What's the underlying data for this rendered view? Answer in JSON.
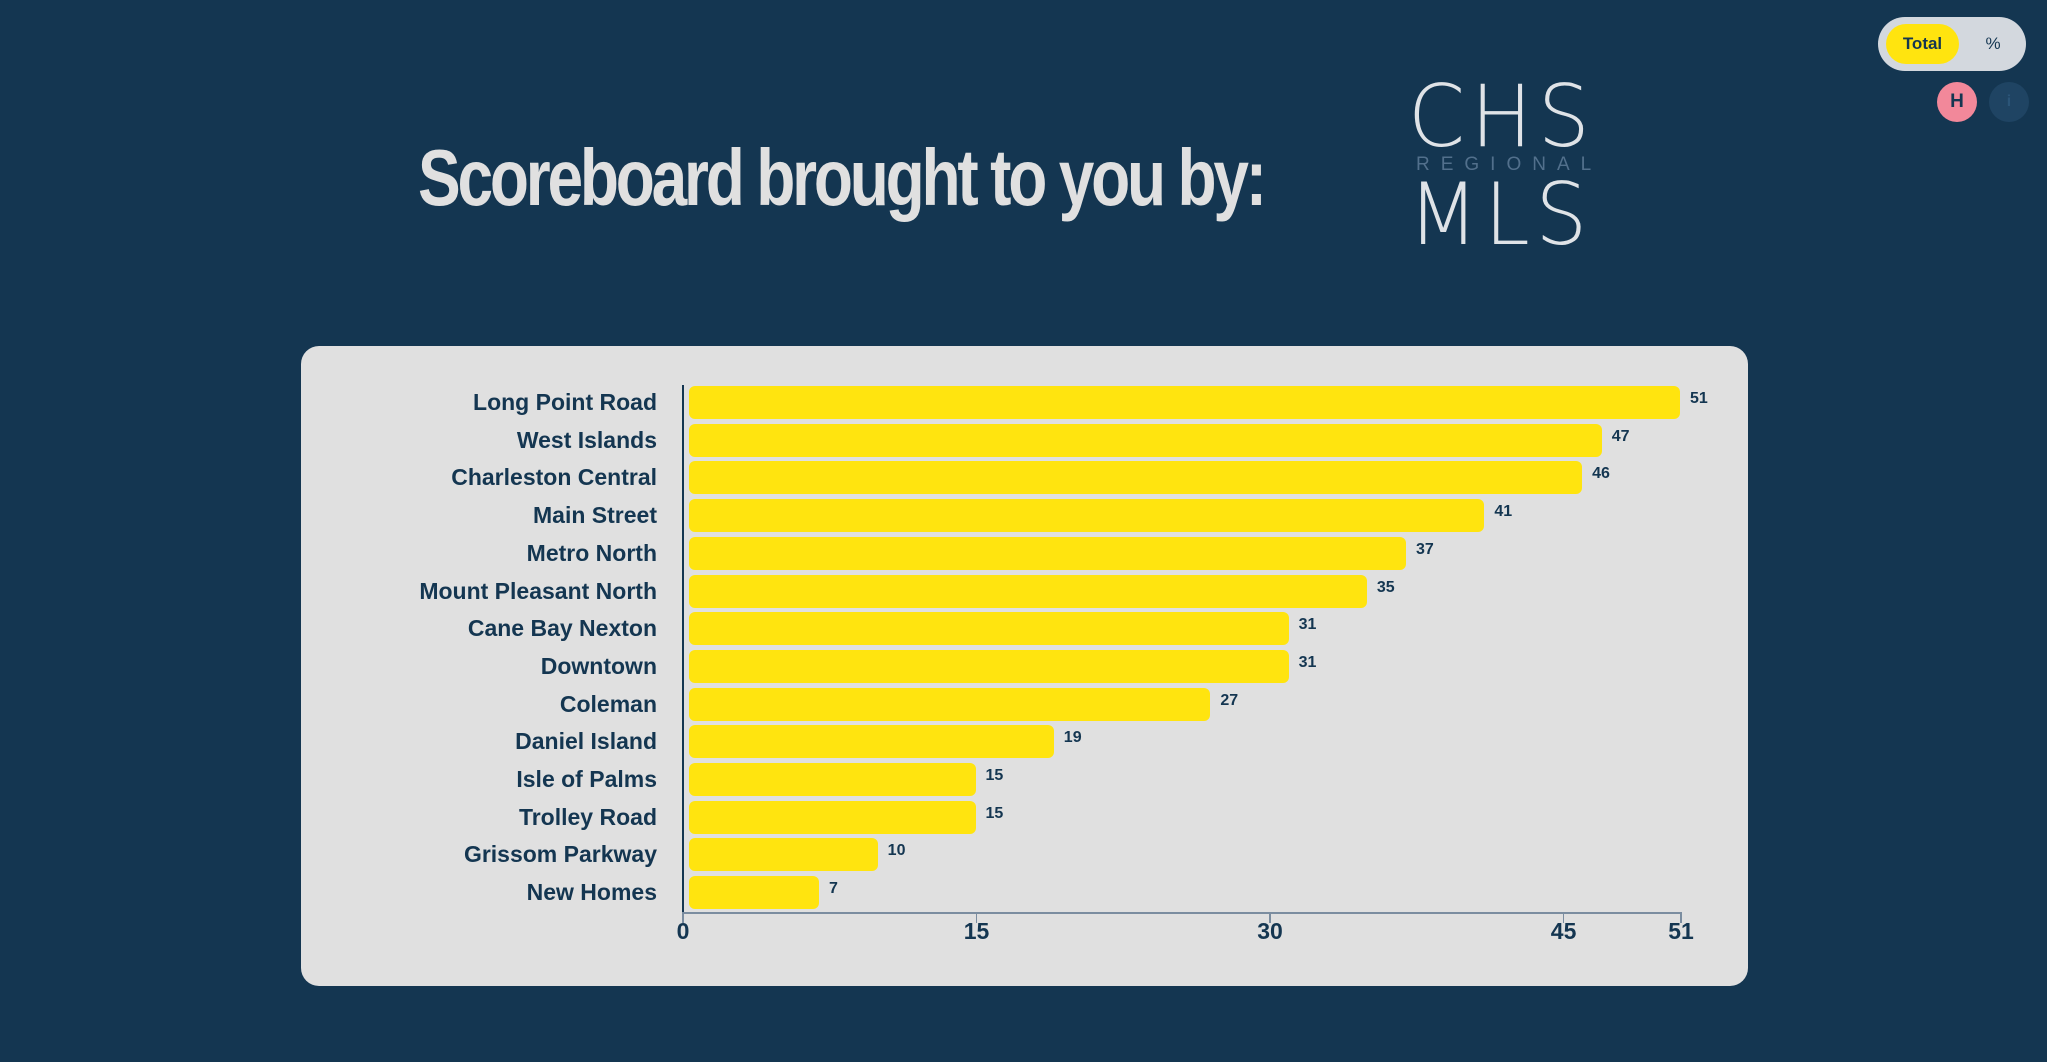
{
  "header": {
    "title": "Scoreboard brought to you by:",
    "logo": {
      "line1": "CHS",
      "line2": "REGIONAL",
      "line3": "MLS"
    }
  },
  "controls": {
    "toggle": {
      "total_label": "Total",
      "percent_label": "%",
      "selected": "Total"
    },
    "avatar_h_label": "H",
    "info_label": "i"
  },
  "colors": {
    "background": "#143651",
    "card": "#e0e0e0",
    "bar": "#ffe40f",
    "text": "#143651"
  },
  "chart_data": {
    "type": "bar",
    "orientation": "horizontal",
    "title": "",
    "xlabel": "",
    "ylabel": "",
    "xlim": [
      0,
      51
    ],
    "xticks": [
      0,
      15,
      30,
      45,
      51
    ],
    "grid": false,
    "categories": [
      "Long Point Road",
      "West Islands",
      "Charleston Central",
      "Main Street",
      "Metro North",
      "Mount Pleasant North",
      "Cane Bay Nexton",
      "Downtown",
      "Coleman",
      "Daniel Island",
      "Isle of Palms",
      "Trolley Road",
      "Grissom Parkway",
      "New Homes"
    ],
    "values": [
      51,
      47,
      46,
      41,
      37,
      35,
      31,
      31,
      27,
      19,
      15,
      15,
      10,
      7
    ],
    "data_labels": true
  }
}
